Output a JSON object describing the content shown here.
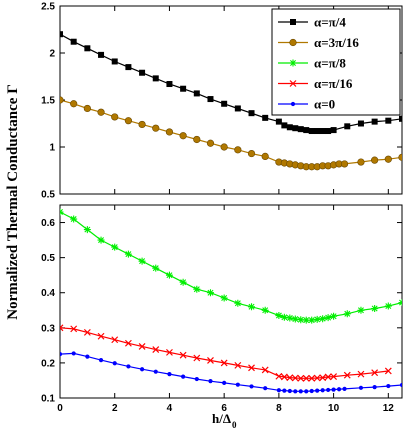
{
  "figure": {
    "ylabel": "Normalized Thermal Conductance Γ",
    "xlabel_main": "h/Δ",
    "xlabel_sub": "0"
  },
  "chart_data": [
    {
      "type": "line",
      "xlim": [
        0,
        12.5
      ],
      "ylim": [
        0.5,
        2.5
      ],
      "xticks": [],
      "yticks": [
        "0.5",
        "1",
        "1.5",
        "2",
        "2.5"
      ],
      "ytick_values": [
        0.5,
        1,
        1.5,
        2,
        2.5
      ],
      "legend_position": "top-right",
      "series": [
        {
          "name": "α=π/4",
          "color": "#000000",
          "marker": "square",
          "x": [
            0,
            0.5,
            1,
            1.5,
            2,
            2.5,
            3,
            3.5,
            4,
            4.5,
            5,
            5.5,
            6,
            6.5,
            7,
            7.5,
            8,
            8.2,
            8.4,
            8.6,
            8.8,
            9,
            9.2,
            9.4,
            9.6,
            9.8,
            10,
            10.5,
            11,
            11.5,
            12,
            12.5
          ],
          "y": [
            2.2,
            2.12,
            2.05,
            1.98,
            1.91,
            1.85,
            1.79,
            1.73,
            1.67,
            1.62,
            1.57,
            1.51,
            1.46,
            1.41,
            1.36,
            1.31,
            1.27,
            1.23,
            1.21,
            1.2,
            1.19,
            1.18,
            1.17,
            1.17,
            1.17,
            1.17,
            1.18,
            1.22,
            1.25,
            1.27,
            1.28,
            1.3
          ]
        },
        {
          "name": "α=3π/16",
          "color": "#b07800",
          "marker": "circle",
          "x": [
            0,
            0.5,
            1,
            1.5,
            2,
            2.5,
            3,
            3.5,
            4,
            4.5,
            5,
            5.5,
            6,
            6.5,
            7,
            7.5,
            8,
            8.2,
            8.4,
            8.6,
            8.8,
            9,
            9.2,
            9.4,
            9.6,
            9.8,
            10,
            10.2,
            10.4,
            11,
            11.5,
            12,
            12.5
          ],
          "y": [
            1.5,
            1.46,
            1.41,
            1.37,
            1.32,
            1.28,
            1.24,
            1.2,
            1.16,
            1.12,
            1.08,
            1.04,
            1.0,
            0.97,
            0.93,
            0.9,
            0.84,
            0.83,
            0.82,
            0.81,
            0.8,
            0.79,
            0.79,
            0.79,
            0.8,
            0.8,
            0.81,
            0.82,
            0.82,
            0.84,
            0.86,
            0.87,
            0.89
          ]
        }
      ]
    },
    {
      "type": "line",
      "xlim": [
        0,
        12.5
      ],
      "ylim": [
        0.1,
        0.65
      ],
      "xticks": [
        "0",
        "2",
        "4",
        "6",
        "8",
        "10",
        "12"
      ],
      "xtick_values": [
        0,
        2,
        4,
        6,
        8,
        10,
        12
      ],
      "yticks": [
        "0.1",
        "0.2",
        "0.3",
        "0.4",
        "0.5",
        "0.6"
      ],
      "ytick_values": [
        0.1,
        0.2,
        0.3,
        0.4,
        0.5,
        0.6
      ],
      "series": [
        {
          "name": "α=π/8",
          "color": "#00ee00",
          "marker": "asterisk",
          "x": [
            0,
            0.5,
            1,
            1.5,
            2,
            2.5,
            3,
            3.5,
            4,
            4.5,
            5,
            5.5,
            6,
            6.5,
            7,
            7.5,
            8,
            8.2,
            8.4,
            8.6,
            8.8,
            9,
            9.2,
            9.4,
            9.6,
            9.8,
            10,
            10.5,
            11,
            11.5,
            12,
            12.5
          ],
          "y": [
            0.63,
            0.61,
            0.58,
            0.55,
            0.53,
            0.51,
            0.49,
            0.47,
            0.45,
            0.43,
            0.41,
            0.4,
            0.385,
            0.37,
            0.36,
            0.35,
            0.335,
            0.33,
            0.328,
            0.325,
            0.323,
            0.322,
            0.322,
            0.324,
            0.326,
            0.329,
            0.333,
            0.34,
            0.35,
            0.355,
            0.362,
            0.372
          ]
        },
        {
          "name": "α=π/16",
          "color": "#ff0000",
          "marker": "cross",
          "x": [
            0,
            0.5,
            1,
            1.5,
            2,
            2.5,
            3,
            3.5,
            4,
            4.5,
            5,
            5.5,
            6,
            6.5,
            7,
            7.5,
            8,
            8.2,
            8.4,
            8.6,
            8.8,
            9,
            9.2,
            9.4,
            9.6,
            9.8,
            10,
            10.5,
            11,
            11.5,
            12
          ],
          "y": [
            0.3,
            0.297,
            0.287,
            0.276,
            0.266,
            0.256,
            0.247,
            0.238,
            0.23,
            0.222,
            0.214,
            0.207,
            0.2,
            0.193,
            0.186,
            0.18,
            0.162,
            0.16,
            0.158,
            0.157,
            0.156,
            0.156,
            0.156,
            0.157,
            0.158,
            0.16,
            0.161,
            0.165,
            0.168,
            0.172,
            0.177
          ]
        },
        {
          "name": "α=0",
          "color": "#0000ff",
          "marker": "dot",
          "x": [
            0,
            0.5,
            1,
            1.5,
            2,
            2.5,
            3,
            3.5,
            4,
            4.5,
            5,
            5.5,
            6,
            6.5,
            7,
            7.5,
            8,
            8.2,
            8.4,
            8.6,
            8.8,
            9,
            9.2,
            9.4,
            9.6,
            9.8,
            10,
            10.2,
            10.4,
            11,
            11.5,
            12,
            12.5
          ],
          "y": [
            0.225,
            0.227,
            0.218,
            0.208,
            0.199,
            0.19,
            0.182,
            0.175,
            0.168,
            0.161,
            0.154,
            0.148,
            0.143,
            0.138,
            0.133,
            0.128,
            0.122,
            0.121,
            0.12,
            0.119,
            0.119,
            0.119,
            0.12,
            0.121,
            0.122,
            0.123,
            0.124,
            0.125,
            0.126,
            0.129,
            0.131,
            0.134,
            0.137
          ]
        }
      ]
    }
  ]
}
